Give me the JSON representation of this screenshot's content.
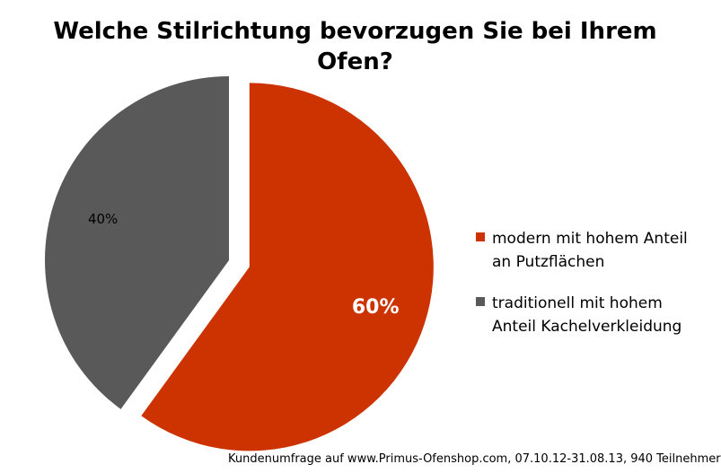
{
  "chart_data": {
    "type": "pie",
    "title_lines": [
      "Welche Stilrichtung bevorzugen Sie bei Ihrem",
      "Ofen?"
    ],
    "slices": [
      {
        "label": "modern mit hohem Anteil an Putzflächen",
        "value": 60,
        "data_label": "60%",
        "color": "#cc3300",
        "exploded": true
      },
      {
        "label": "traditionell mit hohem Anteil Kachelverkleidung",
        "value": 40,
        "data_label": "40%",
        "color": "#595959",
        "exploded": false
      }
    ],
    "legend_position": "right"
  },
  "footer": "Kundenumfrage auf  www.Primus-Ofenshop.com, 07.10.12-31.08.13, 940 Teilnehmer"
}
